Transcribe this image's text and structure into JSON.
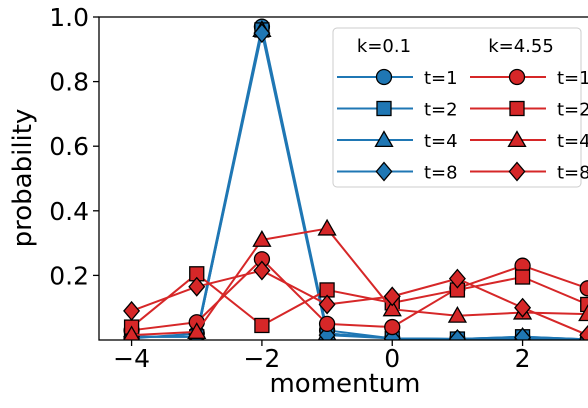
{
  "chart_data": {
    "type": "line",
    "xlabel": "momentum",
    "ylabel": "probability",
    "xlim": [
      -4.5,
      3.05
    ],
    "ylim": [
      0.0,
      1.0
    ],
    "xticks": [
      -4,
      -2,
      0,
      2
    ],
    "xtick_labels": [
      "−4",
      "−2",
      "0",
      "2"
    ],
    "yticks": [
      0.2,
      0.4,
      0.6,
      0.8,
      1.0
    ],
    "ytick_labels": [
      "0.2",
      "0.4",
      "0.6",
      "0.8",
      "1.0"
    ],
    "grid": false,
    "legend_placement": "top-right",
    "legend_groups": [
      {
        "title": "k=0.1",
        "color": "#1f77b4"
      },
      {
        "title": "k=4.55",
        "color": "#d62728"
      }
    ],
    "colors": {
      "blue": "#1f77b4",
      "red": "#d62728"
    },
    "x": [
      -4,
      -3,
      -2,
      -1,
      0,
      1,
      2,
      3
    ],
    "series": [
      {
        "name": "t=1",
        "group": "k=0.1",
        "marker": "circle",
        "color": "#1f77b4",
        "values": [
          0.005,
          0.02,
          0.97,
          0.03,
          0.005,
          0.003,
          0.005,
          0.002
        ]
      },
      {
        "name": "t=2",
        "group": "k=0.1",
        "marker": "square",
        "color": "#1f77b4",
        "values": [
          0.01,
          0.01,
          0.96,
          0.02,
          0.005,
          0.003,
          0.01,
          0.002
        ]
      },
      {
        "name": "t=4",
        "group": "k=0.1",
        "marker": "triangle",
        "color": "#1f77b4",
        "values": [
          0.01,
          0.01,
          0.96,
          0.02,
          0.005,
          0.003,
          0.01,
          0.002
        ]
      },
      {
        "name": "t=8",
        "group": "k=0.1",
        "marker": "diamond",
        "color": "#1f77b4",
        "values": [
          0.01,
          0.01,
          0.95,
          0.015,
          0.005,
          0.003,
          0.008,
          0.002
        ]
      },
      {
        "name": "t=1",
        "group": "k=4.55",
        "marker": "circle",
        "color": "#d62728",
        "values": [
          0.03,
          0.055,
          0.25,
          0.05,
          0.04,
          0.16,
          0.23,
          0.16
        ]
      },
      {
        "name": "t=2",
        "group": "k=4.55",
        "marker": "square",
        "color": "#d62728",
        "values": [
          0.04,
          0.205,
          0.045,
          0.155,
          0.115,
          0.155,
          0.195,
          0.11
        ]
      },
      {
        "name": "t=4",
        "group": "k=4.55",
        "marker": "triangle",
        "color": "#d62728",
        "values": [
          0.015,
          0.025,
          0.31,
          0.345,
          0.095,
          0.075,
          0.085,
          0.08
        ]
      },
      {
        "name": "t=8",
        "group": "k=4.55",
        "marker": "diamond",
        "color": "#d62728",
        "values": [
          0.09,
          0.165,
          0.215,
          0.11,
          0.135,
          0.19,
          0.1,
          0.015
        ]
      }
    ]
  }
}
